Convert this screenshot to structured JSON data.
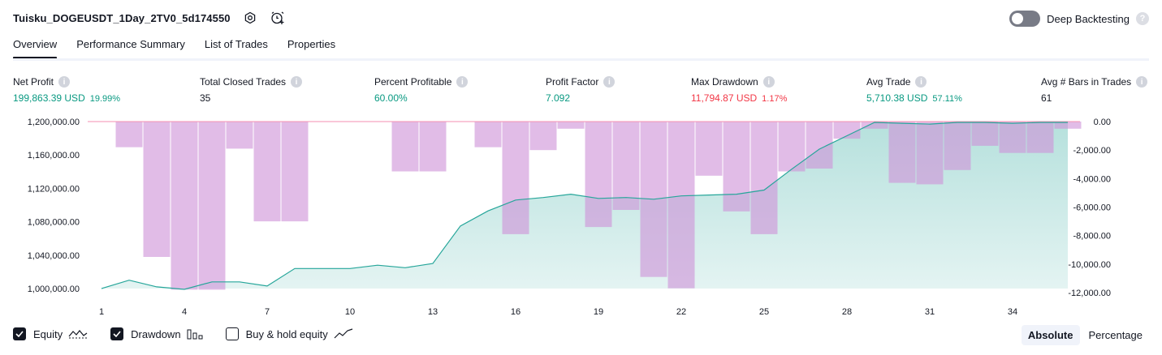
{
  "strategy_title": "Tuisku_DOGEUSDT_1Day_2TV0_5d174550",
  "header_icons": [
    "settings-icon",
    "add-alert-icon"
  ],
  "deep_backtesting": {
    "label": "Deep Backtesting",
    "enabled": false,
    "help": "?"
  },
  "tabs": [
    {
      "label": "Overview",
      "active": true
    },
    {
      "label": "Performance Summary",
      "active": false
    },
    {
      "label": "List of Trades",
      "active": false
    },
    {
      "label": "Properties",
      "active": false
    }
  ],
  "info_glyph": "i",
  "metrics": [
    {
      "label": "Net Profit",
      "value": "199,863.39 USD",
      "pct": "19.99%",
      "color": "green"
    },
    {
      "label": "Total Closed Trades",
      "value": "35",
      "pct": "",
      "color": ""
    },
    {
      "label": "Percent Profitable",
      "value": "60.00%",
      "pct": "",
      "color": "green"
    },
    {
      "label": "Profit Factor",
      "value": "7.092",
      "pct": "",
      "color": "green"
    },
    {
      "label": "Max Drawdown",
      "value": "11,794.87 USD",
      "pct": "1.17%",
      "color": "red"
    },
    {
      "label": "Avg Trade",
      "value": "5,710.38 USD",
      "pct": "57.11%",
      "color": "green"
    },
    {
      "label": "Avg # Bars in Trades",
      "value": "61",
      "pct": "",
      "color": ""
    }
  ],
  "chart_data": {
    "type": "line+bar",
    "x_ticks": [
      "1",
      "4",
      "7",
      "10",
      "13",
      "16",
      "19",
      "22",
      "25",
      "28",
      "31",
      "34"
    ],
    "left_axis": {
      "ticks": [
        "1,200,000.00",
        "1,160,000.00",
        "1,120,000.00",
        "1,080,000.00",
        "1,040,000.00",
        "1,000,000.00"
      ],
      "tick_values": [
        1200000,
        1160000,
        1120000,
        1080000,
        1040000,
        1000000
      ],
      "range": [
        1000000,
        1200000
      ]
    },
    "right_axis": {
      "ticks": [
        "0.00",
        "-2,000.00",
        "-4,000.00",
        "-6,000.00",
        "-8,000.00",
        "-10,000.00",
        "-12,000.00"
      ],
      "tick_values": [
        0,
        -2000,
        -4000,
        -6000,
        -8000,
        -10000,
        -12000
      ],
      "range": [
        -12000,
        0
      ]
    },
    "x_range": [
      1,
      36
    ],
    "series": [
      {
        "name": "Equity",
        "type": "area",
        "color": "#26a69a",
        "x": [
          1,
          2,
          3,
          4,
          5,
          6,
          7,
          8,
          9,
          10,
          11,
          12,
          13,
          14,
          15,
          16,
          17,
          18,
          19,
          20,
          21,
          22,
          23,
          24,
          25,
          26,
          27,
          28,
          29,
          30,
          31,
          32,
          33,
          34,
          35,
          36
        ],
        "values": [
          1000000,
          1010000,
          1002000,
          999000,
          1008000,
          1008000,
          1003000,
          1024000,
          1024000,
          1024000,
          1028000,
          1025000,
          1030000,
          1075000,
          1093000,
          1106000,
          1109000,
          1113000,
          1108000,
          1109000,
          1107000,
          1111000,
          1112000,
          1113000,
          1118000,
          1143000,
          1167000,
          1183000,
          1199000,
          1198000,
          1197000,
          1199000,
          1199000,
          1198000,
          1199000,
          1199000
        ]
      },
      {
        "name": "Drawdown",
        "type": "bar",
        "color": "#ce93d8",
        "x": [
          1,
          2,
          3,
          4,
          5,
          6,
          7,
          8,
          9,
          10,
          11,
          12,
          13,
          14,
          15,
          16,
          17,
          18,
          19,
          20,
          21,
          22,
          23,
          24,
          25,
          26,
          27,
          28,
          29,
          30,
          31,
          32,
          33,
          34,
          35,
          36
        ],
        "values": [
          0,
          -1800,
          -9500,
          -11794.87,
          -11794.87,
          -1900,
          -7000,
          -7000,
          0,
          0,
          0,
          -3500,
          -3500,
          0,
          -1800,
          -7900,
          -2000,
          -500,
          -7400,
          -6200,
          -10900,
          -11700,
          -3800,
          -6300,
          -7900,
          -3500,
          -3300,
          -1200,
          -500,
          -4300,
          -4400,
          -3400,
          -1700,
          -2200,
          -2200,
          -500
        ]
      }
    ],
    "legend": [
      {
        "label": "Equity",
        "checked": true,
        "icon": "equity-line-icon"
      },
      {
        "label": "Drawdown",
        "checked": true,
        "icon": "drawdown-bars-icon"
      },
      {
        "label": "Buy & hold equity",
        "checked": false,
        "icon": "buy-hold-line-icon"
      }
    ],
    "modes": [
      {
        "label": "Absolute",
        "active": true
      },
      {
        "label": "Percentage",
        "active": false
      }
    ],
    "grid": false,
    "legend_placement": "bottom-left"
  }
}
